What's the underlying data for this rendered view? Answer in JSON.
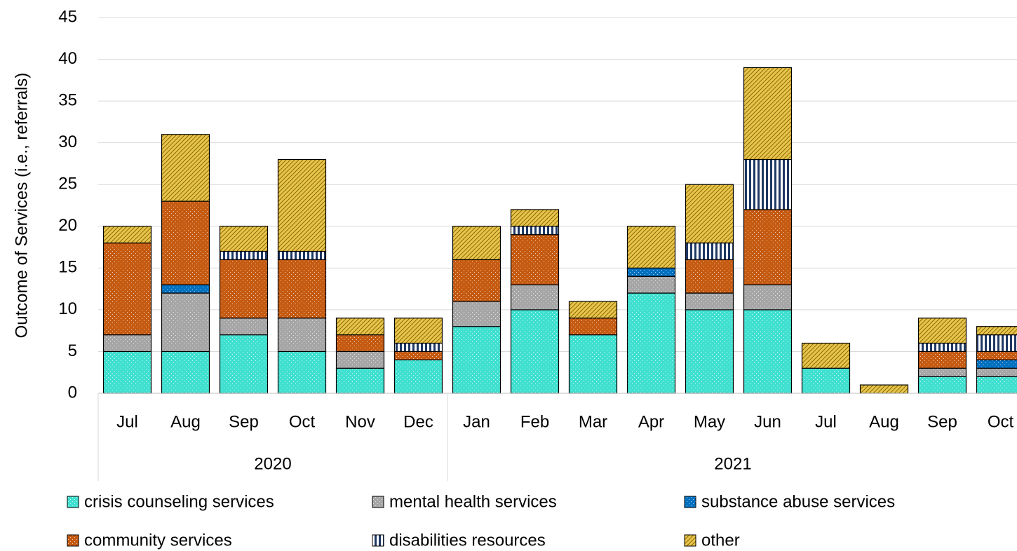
{
  "chart_data": {
    "type": "stacked_bar",
    "y_label": "Outcome of Services (i.e., referrals)",
    "categories": [
      "Jul",
      "Aug",
      "Sep",
      "Oct",
      "Nov",
      "Dec",
      "Jan",
      "Feb",
      "Mar",
      "Apr",
      "May",
      "Jun",
      "Jul",
      "Aug",
      "Sep",
      "Oct"
    ],
    "year_groups": [
      {
        "label": "2020",
        "size": 6
      },
      {
        "label": "2021",
        "size": 10
      }
    ],
    "series": [
      {
        "name": "crisis counseling services",
        "color": "#40e0d0",
        "values": [
          5,
          5,
          7,
          5,
          3,
          4,
          8,
          10,
          7,
          12,
          10,
          10,
          3,
          0,
          2,
          2
        ]
      },
      {
        "name": "mental health services",
        "color": "#a6a6a6",
        "values": [
          2,
          7,
          2,
          4,
          2,
          0,
          3,
          3,
          0,
          2,
          2,
          3,
          0,
          0,
          1,
          1
        ]
      },
      {
        "name": "substance abuse services",
        "color": "#0070c0",
        "values": [
          0,
          1,
          0,
          0,
          0,
          0,
          0,
          0,
          0,
          1,
          0,
          0,
          0,
          0,
          0,
          1
        ]
      },
      {
        "name": "community services",
        "color": "#c55a11",
        "values": [
          11,
          10,
          7,
          7,
          2,
          1,
          5,
          6,
          2,
          0,
          4,
          9,
          0,
          0,
          2,
          1
        ]
      },
      {
        "name": "disabilities resources",
        "color": "#1f3864",
        "values": [
          0,
          0,
          1,
          1,
          0,
          1,
          0,
          1,
          0,
          0,
          2,
          6,
          0,
          0,
          1,
          2
        ]
      },
      {
        "name": "other",
        "color": "#e8c44a",
        "values": [
          2,
          8,
          3,
          11,
          2,
          3,
          4,
          2,
          2,
          5,
          7,
          11,
          3,
          1,
          3,
          1
        ]
      }
    ],
    "ylim": [
      0,
      45
    ],
    "yticks": [
      0,
      5,
      10,
      15,
      20,
      25,
      30,
      35,
      40,
      45
    ],
    "grid": true
  }
}
